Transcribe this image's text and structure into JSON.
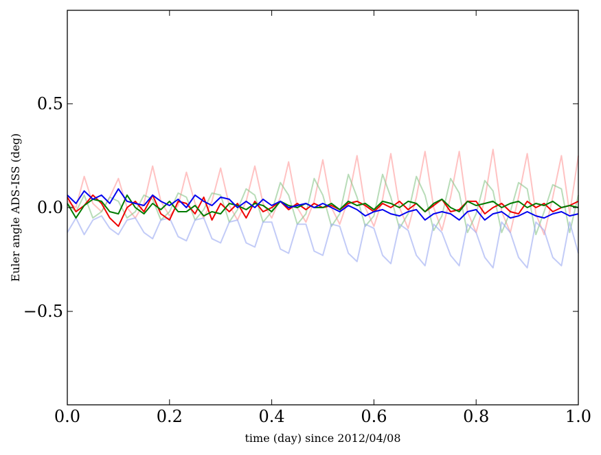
{
  "chart_data": {
    "type": "line",
    "title": "",
    "xlabel": "time (day) since 2012/04/08",
    "ylabel": "Euler angle ADS-ISS (deg)",
    "xlim": [
      0.0,
      1.0
    ],
    "ylim": [
      -0.95,
      0.95
    ],
    "grid": false,
    "legend": "none",
    "x_ticks": [
      {
        "value": 0.0,
        "label": "0.0"
      },
      {
        "value": 0.2,
        "label": "0.2"
      },
      {
        "value": 0.4,
        "label": "0.4"
      },
      {
        "value": 0.6,
        "label": "0.6"
      },
      {
        "value": 0.8,
        "label": "0.8"
      },
      {
        "value": 1.0,
        "label": "1.0"
      }
    ],
    "y_ticks": [
      {
        "value": 0.5,
        "label": "0.5"
      },
      {
        "value": 0.0,
        "label": "0.0"
      },
      {
        "value": -0.5,
        "label": "−0.5"
      }
    ],
    "x": [
      0.0,
      0.017,
      0.033,
      0.05,
      0.067,
      0.083,
      0.1,
      0.117,
      0.133,
      0.15,
      0.167,
      0.183,
      0.2,
      0.217,
      0.233,
      0.25,
      0.267,
      0.283,
      0.3,
      0.317,
      0.333,
      0.35,
      0.367,
      0.383,
      0.4,
      0.417,
      0.433,
      0.45,
      0.467,
      0.483,
      0.5,
      0.517,
      0.533,
      0.55,
      0.567,
      0.583,
      0.6,
      0.617,
      0.633,
      0.65,
      0.667,
      0.683,
      0.7,
      0.717,
      0.733,
      0.75,
      0.767,
      0.783,
      0.8,
      0.817,
      0.833,
      0.85,
      0.867,
      0.883,
      0.9,
      0.917,
      0.933,
      0.95,
      0.967,
      0.983,
      1.0
    ],
    "series": [
      {
        "color": "#ff9999",
        "opacity": 0.6,
        "values": [
          0.03,
          0.0,
          0.15,
          0.02,
          -0.02,
          0.05,
          0.14,
          0.0,
          -0.05,
          0.02,
          0.2,
          0.03,
          -0.04,
          0.01,
          0.17,
          0.02,
          -0.05,
          0.03,
          0.19,
          0.01,
          -0.06,
          0.03,
          0.2,
          0.02,
          -0.05,
          0.05,
          0.22,
          0.0,
          -0.07,
          0.03,
          0.23,
          0.0,
          -0.08,
          0.04,
          0.25,
          0.0,
          -0.09,
          0.04,
          0.26,
          0.0,
          -0.1,
          0.05,
          0.27,
          0.0,
          -0.11,
          0.05,
          0.27,
          -0.02,
          -0.12,
          0.04,
          0.28,
          -0.02,
          -0.12,
          0.05,
          0.26,
          -0.03,
          -0.13,
          0.05,
          0.25,
          -0.03,
          0.25
        ]
      },
      {
        "color": "#88c488",
        "opacity": 0.6,
        "values": [
          0.02,
          -0.02,
          0.06,
          -0.05,
          -0.02,
          0.05,
          0.03,
          -0.05,
          -0.02,
          0.06,
          0.04,
          -0.06,
          -0.02,
          0.07,
          0.05,
          -0.06,
          -0.01,
          0.07,
          0.06,
          -0.07,
          -0.01,
          0.09,
          0.06,
          -0.07,
          -0.02,
          0.12,
          0.06,
          -0.08,
          -0.03,
          0.14,
          0.06,
          -0.09,
          -0.03,
          0.16,
          0.05,
          -0.09,
          -0.04,
          0.16,
          0.05,
          -0.1,
          -0.03,
          0.15,
          0.06,
          -0.11,
          -0.04,
          0.14,
          0.07,
          -0.12,
          -0.03,
          0.13,
          0.08,
          -0.12,
          -0.02,
          0.12,
          0.09,
          -0.13,
          -0.02,
          0.11,
          0.09,
          -0.12,
          0.06
        ]
      },
      {
        "color": "#9aa8f2",
        "opacity": 0.6,
        "values": [
          -0.12,
          -0.05,
          -0.13,
          -0.06,
          -0.04,
          -0.1,
          -0.13,
          -0.06,
          -0.05,
          -0.12,
          -0.15,
          -0.06,
          -0.05,
          -0.14,
          -0.16,
          -0.06,
          -0.05,
          -0.15,
          -0.17,
          -0.07,
          -0.06,
          -0.17,
          -0.19,
          -0.07,
          -0.07,
          -0.2,
          -0.22,
          -0.08,
          -0.08,
          -0.21,
          -0.23,
          -0.08,
          -0.09,
          -0.22,
          -0.26,
          -0.08,
          -0.1,
          -0.23,
          -0.27,
          -0.08,
          -0.11,
          -0.23,
          -0.28,
          -0.08,
          -0.12,
          -0.23,
          -0.28,
          -0.08,
          -0.12,
          -0.24,
          -0.29,
          -0.07,
          -0.12,
          -0.24,
          -0.29,
          -0.07,
          -0.11,
          -0.24,
          -0.28,
          -0.07,
          -0.22
        ]
      },
      {
        "color": "#ee0000",
        "opacity": 1.0,
        "values": [
          0.05,
          -0.02,
          0.01,
          0.06,
          0.02,
          -0.05,
          -0.09,
          0.0,
          0.03,
          -0.02,
          0.06,
          -0.03,
          -0.06,
          0.03,
          0.02,
          -0.03,
          0.05,
          -0.06,
          0.02,
          -0.02,
          0.02,
          -0.05,
          0.03,
          -0.02,
          0.0,
          0.03,
          -0.01,
          0.02,
          -0.01,
          0.02,
          0.0,
          0.01,
          -0.01,
          0.02,
          0.03,
          0.01,
          -0.02,
          0.02,
          0.0,
          0.03,
          -0.01,
          0.02,
          -0.02,
          0.01,
          0.04,
          -0.02,
          -0.01,
          0.03,
          0.03,
          -0.03,
          0.0,
          0.02,
          -0.02,
          -0.03,
          0.03,
          0.0,
          0.02,
          -0.02,
          0.0,
          0.01,
          0.03
        ]
      },
      {
        "color": "#007a00",
        "opacity": 1.0,
        "values": [
          0.02,
          -0.05,
          0.01,
          0.04,
          0.03,
          -0.02,
          -0.03,
          0.06,
          0.0,
          -0.03,
          0.02,
          -0.01,
          0.03,
          -0.02,
          -0.02,
          0.01,
          -0.04,
          -0.02,
          -0.03,
          0.02,
          0.01,
          -0.01,
          0.02,
          0.01,
          -0.02,
          0.03,
          0.01,
          0.0,
          0.02,
          0.0,
          0.0,
          0.02,
          -0.01,
          0.03,
          0.01,
          0.02,
          -0.01,
          0.03,
          0.02,
          0.0,
          0.03,
          0.02,
          -0.02,
          0.02,
          0.04,
          0.0,
          -0.02,
          0.03,
          0.01,
          0.02,
          0.03,
          0.0,
          0.02,
          0.03,
          0.0,
          0.02,
          0.01,
          0.03,
          0.0,
          0.01,
          0.0
        ]
      },
      {
        "color": "#0000ee",
        "opacity": 1.0,
        "values": [
          0.06,
          0.02,
          0.08,
          0.04,
          0.06,
          0.02,
          0.09,
          0.03,
          0.02,
          0.01,
          0.06,
          0.03,
          0.01,
          0.04,
          0.0,
          0.06,
          0.03,
          0.01,
          0.05,
          0.04,
          0.0,
          0.03,
          0.0,
          0.04,
          0.01,
          0.03,
          0.0,
          0.01,
          0.02,
          0.0,
          0.02,
          0.0,
          -0.02,
          0.01,
          -0.01,
          -0.04,
          -0.02,
          -0.01,
          -0.03,
          -0.04,
          -0.02,
          -0.01,
          -0.06,
          -0.03,
          -0.02,
          -0.03,
          -0.06,
          -0.02,
          -0.01,
          -0.06,
          -0.03,
          -0.02,
          -0.05,
          -0.04,
          -0.02,
          -0.04,
          -0.05,
          -0.03,
          -0.02,
          -0.04,
          -0.03
        ]
      }
    ]
  }
}
